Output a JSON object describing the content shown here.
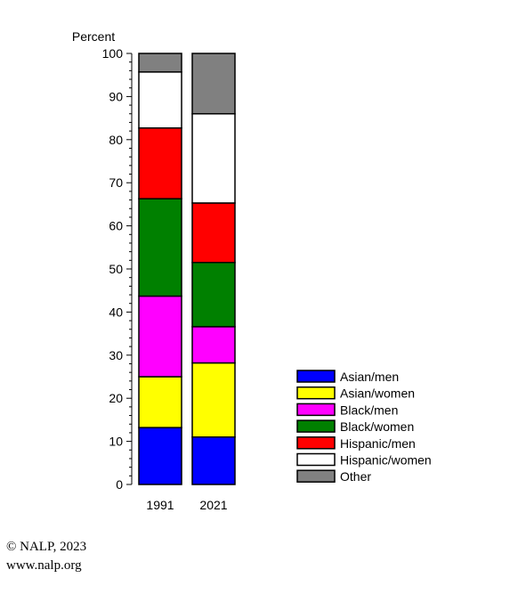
{
  "chart_data": {
    "type": "bar",
    "stacked": true,
    "ylabel": "Percent",
    "ylim": [
      0,
      100
    ],
    "yticks": [
      0,
      10,
      20,
      30,
      40,
      50,
      60,
      70,
      80,
      90,
      100
    ],
    "categories": [
      "1991",
      "2021"
    ],
    "series": [
      {
        "name": "Asian/men",
        "color": "#0000ff",
        "values": [
          13.2,
          11.0
        ]
      },
      {
        "name": "Asian/women",
        "color": "#ffff00",
        "values": [
          11.8,
          17.2
        ]
      },
      {
        "name": "Black/men",
        "color": "#ff00ff",
        "values": [
          18.7,
          8.4
        ]
      },
      {
        "name": "Black/women",
        "color": "#008000",
        "values": [
          22.6,
          14.9
        ]
      },
      {
        "name": "Hispanic/men",
        "color": "#ff0000",
        "values": [
          16.4,
          13.8
        ]
      },
      {
        "name": "Hispanic/women",
        "color": "#ffffff",
        "values": [
          13.0,
          20.7
        ]
      },
      {
        "name": "Other",
        "color": "#808080",
        "values": [
          4.3,
          14.0
        ]
      }
    ],
    "legend": "bottom-right"
  },
  "credits": {
    "line1": "© NALP, 2023",
    "line2": "www.nalp.org"
  }
}
